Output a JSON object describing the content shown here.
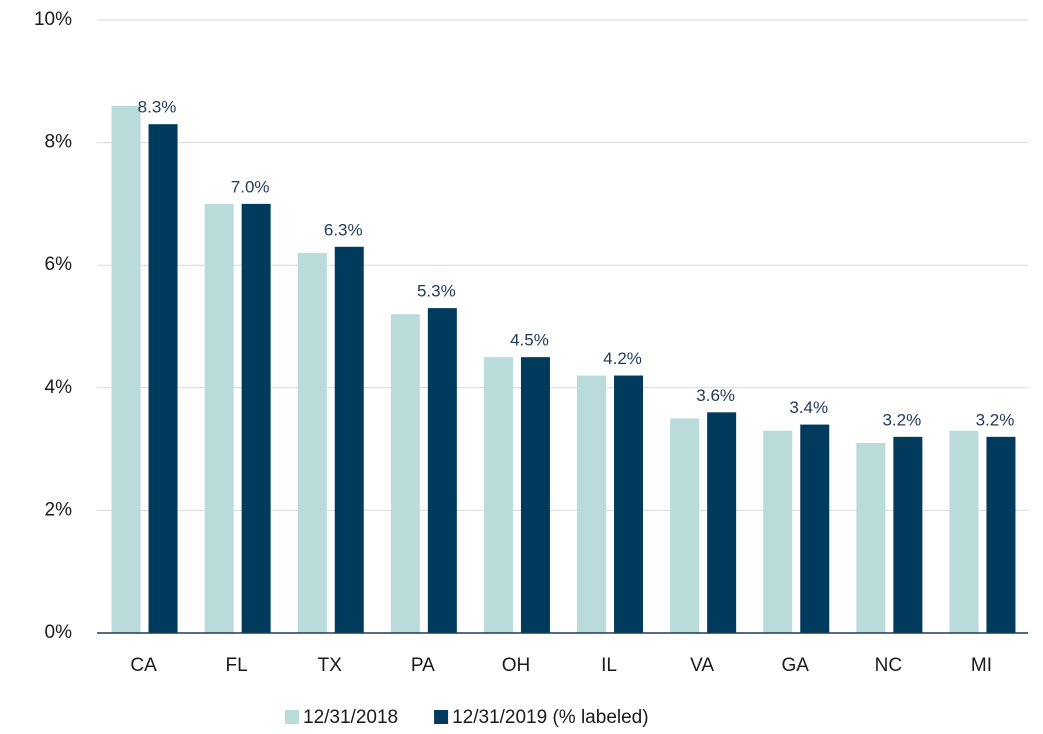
{
  "chart_data": {
    "type": "bar",
    "categories": [
      "CA",
      "FL",
      "TX",
      "PA",
      "OH",
      "IL",
      "VA",
      "GA",
      "NC",
      "MI"
    ],
    "series": [
      {
        "name": "12/31/2018",
        "color": "#b9dcdb",
        "values": [
          8.6,
          7.0,
          6.2,
          5.2,
          4.5,
          4.2,
          3.5,
          3.3,
          3.1,
          3.3
        ]
      },
      {
        "name": "12/31/2019 (% labeled)",
        "color": "#003a5c",
        "values": [
          8.3,
          7.0,
          6.3,
          5.3,
          4.5,
          4.2,
          3.6,
          3.4,
          3.2,
          3.2
        ],
        "value_labels": [
          "8.3%",
          "7.0%",
          "6.3%",
          "5.3%",
          "4.5%",
          "4.2%",
          "3.6%",
          "3.4%",
          "3.2%",
          "3.2%"
        ]
      }
    ],
    "ylim": [
      0,
      10
    ],
    "yticks": [
      {
        "value": 0,
        "label": "0%"
      },
      {
        "value": 2,
        "label": "2%"
      },
      {
        "value": 4,
        "label": "4%"
      },
      {
        "value": 6,
        "label": "6%"
      },
      {
        "value": 8,
        "label": "8%"
      },
      {
        "value": 10,
        "label": "10%"
      }
    ],
    "grid": true,
    "legend": "bottom"
  }
}
